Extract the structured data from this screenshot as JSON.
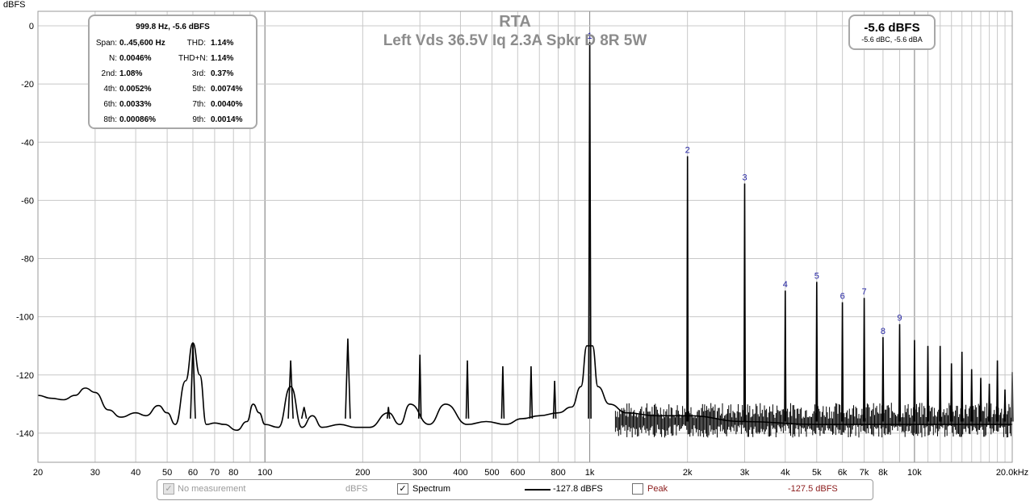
{
  "chart_data": {
    "type": "line",
    "title": "RTA",
    "subtitle": "Left Vds 36.5V Iq 2.3A Spkr D 8R 5W",
    "ylabel": "dBFS",
    "xlabel": "",
    "x_scale": "log",
    "xlim": [
      20,
      20000
    ],
    "ylim": [
      -150,
      5
    ],
    "grid": true,
    "x_ticks": [
      {
        "v": 20,
        "l": "20"
      },
      {
        "v": 30,
        "l": "30"
      },
      {
        "v": 40,
        "l": "40"
      },
      {
        "v": 50,
        "l": "50"
      },
      {
        "v": 60,
        "l": "60"
      },
      {
        "v": 70,
        "l": "70"
      },
      {
        "v": 80,
        "l": "80"
      },
      {
        "v": 100,
        "l": "100"
      },
      {
        "v": 200,
        "l": "200"
      },
      {
        "v": 300,
        "l": "300"
      },
      {
        "v": 400,
        "l": "400"
      },
      {
        "v": 500,
        "l": "500"
      },
      {
        "v": 600,
        "l": "600"
      },
      {
        "v": 800,
        "l": "800"
      },
      {
        "v": 1000,
        "l": "1k"
      },
      {
        "v": 2000,
        "l": "2k"
      },
      {
        "v": 3000,
        "l": "3k"
      },
      {
        "v": 4000,
        "l": "4k"
      },
      {
        "v": 5000,
        "l": "5k"
      },
      {
        "v": 6000,
        "l": "6k"
      },
      {
        "v": 7000,
        "l": "7k"
      },
      {
        "v": 8000,
        "l": "8k"
      },
      {
        "v": 10000,
        "l": "10k"
      },
      {
        "v": 20000,
        "l": "20.0kHz"
      }
    ],
    "y_ticks": [
      {
        "v": 0,
        "l": "0"
      },
      {
        "v": -20,
        "l": "-20"
      },
      {
        "v": -40,
        "l": "-40"
      },
      {
        "v": -60,
        "l": "-60"
      },
      {
        "v": -80,
        "l": "-80"
      },
      {
        "v": -100,
        "l": "-100"
      },
      {
        "v": -120,
        "l": "-120"
      },
      {
        "v": -140,
        "l": "-140"
      }
    ],
    "series": [
      {
        "name": "Spectrum",
        "floor_points": [
          [
            20,
            -127
          ],
          [
            22,
            -128
          ],
          [
            24,
            -128.5
          ],
          [
            26,
            -127
          ],
          [
            28,
            -124.5
          ],
          [
            30,
            -126
          ],
          [
            33,
            -132
          ],
          [
            36,
            -134.5
          ],
          [
            40,
            -133
          ],
          [
            43,
            -134
          ],
          [
            47,
            -130.5
          ],
          [
            50,
            -133
          ],
          [
            53,
            -137
          ],
          [
            57,
            -122
          ],
          [
            60,
            -109
          ],
          [
            63,
            -120
          ],
          [
            66,
            -137
          ],
          [
            70,
            -136.5
          ],
          [
            75,
            -137
          ],
          [
            82,
            -139
          ],
          [
            88,
            -136
          ],
          [
            92,
            -130
          ],
          [
            96,
            -133
          ],
          [
            100,
            -137
          ],
          [
            110,
            -138
          ],
          [
            120,
            -124
          ],
          [
            130,
            -138
          ],
          [
            140,
            -134
          ],
          [
            150,
            -138
          ],
          [
            170,
            -137
          ],
          [
            190,
            -138
          ],
          [
            210,
            -138
          ],
          [
            240,
            -133
          ],
          [
            260,
            -137
          ],
          [
            280,
            -130
          ],
          [
            320,
            -137
          ],
          [
            360,
            -130
          ],
          [
            420,
            -137
          ],
          [
            480,
            -136
          ],
          [
            550,
            -137
          ],
          [
            620,
            -135
          ],
          [
            700,
            -134
          ],
          [
            800,
            -133
          ],
          [
            880,
            -131
          ],
          [
            940,
            -124
          ],
          [
            980,
            -110
          ],
          [
            1020,
            -110
          ],
          [
            1060,
            -124
          ],
          [
            1150,
            -130
          ],
          [
            1300,
            -133
          ],
          [
            1600,
            -134
          ],
          [
            2000,
            -134
          ],
          [
            3000,
            -136
          ],
          [
            5000,
            -137
          ],
          [
            10000,
            -137
          ],
          [
            20000,
            -137
          ]
        ],
        "peaks": [
          {
            "x": 60,
            "y": -109
          },
          {
            "x": 120,
            "y": -115
          },
          {
            "x": 132,
            "y": -131
          },
          {
            "x": 180,
            "y": -107.5
          },
          {
            "x": 240,
            "y": -131
          },
          {
            "x": 300,
            "y": -113
          },
          {
            "x": 420,
            "y": -115
          },
          {
            "x": 540,
            "y": -117
          },
          {
            "x": 660,
            "y": -117
          },
          {
            "x": 780,
            "y": -122
          },
          {
            "x": 1000,
            "y": -5.6
          },
          {
            "x": 2000,
            "y": -44.8
          },
          {
            "x": 3000,
            "y": -54.2
          },
          {
            "x": 4000,
            "y": -91
          },
          {
            "x": 5000,
            "y": -88
          },
          {
            "x": 6000,
            "y": -95
          },
          {
            "x": 7000,
            "y": -93.5
          },
          {
            "x": 8000,
            "y": -107
          },
          {
            "x": 9000,
            "y": -102.5
          },
          {
            "x": 10000,
            "y": -108
          },
          {
            "x": 11000,
            "y": -110
          },
          {
            "x": 12000,
            "y": -110
          },
          {
            "x": 13000,
            "y": -116
          },
          {
            "x": 14000,
            "y": -112
          },
          {
            "x": 15000,
            "y": -118
          },
          {
            "x": 16000,
            "y": -121
          },
          {
            "x": 17000,
            "y": -123
          },
          {
            "x": 18000,
            "y": -115
          },
          {
            "x": 19000,
            "y": -125
          },
          {
            "x": 20000,
            "y": -119
          }
        ]
      }
    ],
    "harmonic_labels": [
      {
        "n": "1",
        "x": 1000,
        "y": -5.6
      },
      {
        "n": "2",
        "x": 2000,
        "y": -44.8
      },
      {
        "n": "3",
        "x": 3000,
        "y": -54.2
      },
      {
        "n": "4",
        "x": 4000,
        "y": -91
      },
      {
        "n": "5",
        "x": 5000,
        "y": -88
      },
      {
        "n": "6",
        "x": 6000,
        "y": -95
      },
      {
        "n": "7",
        "x": 7000,
        "y": -93.5
      },
      {
        "n": "8",
        "x": 8000,
        "y": -107
      },
      {
        "n": "9",
        "x": 9000,
        "y": -102.5
      }
    ],
    "colors": {
      "trace": "#000000",
      "grid": "#c8c8c8",
      "harmonic_label": "#1f1fa0",
      "title": "#8c8c8c"
    }
  },
  "stats": {
    "header": "999.8 Hz, -5.6 dBFS",
    "rows": [
      [
        {
          "label": "Span:",
          "value": "0..45,600 Hz"
        },
        {
          "label": "THD:",
          "value": "1.14%"
        }
      ],
      [
        {
          "label": "N:",
          "value": "0.0046%"
        },
        {
          "label": "THD+N:",
          "value": "1.14%"
        }
      ],
      [
        {
          "label": "2nd:",
          "value": "1.08%"
        },
        {
          "label": "3rd:",
          "value": "0.37%"
        }
      ],
      [
        {
          "label": "4th:",
          "value": "0.0052%"
        },
        {
          "label": "5th:",
          "value": "0.0074%"
        }
      ],
      [
        {
          "label": "6th:",
          "value": "0.0033%"
        },
        {
          "label": "7th:",
          "value": "0.0040%"
        }
      ],
      [
        {
          "label": "8th:",
          "value": "0.00086%"
        },
        {
          "label": "9th:",
          "value": "0.0014%"
        }
      ]
    ]
  },
  "level": {
    "main": "-5.6 dBFS",
    "sub": "-5.6 dBC, -5.6 dBA"
  },
  "legend": {
    "no_measurement_label": "No measurement",
    "no_measurement_unit": "dBFS",
    "no_measurement_checked": true,
    "spectrum_label": "Spectrum",
    "spectrum_checked": true,
    "spectrum_value": "-127.8 dBFS",
    "peak_label": "Peak",
    "peak_checked": false,
    "peak_value": "-127.5 dBFS",
    "peak_color": "#8b1a1a",
    "check_glyph": "✓"
  }
}
